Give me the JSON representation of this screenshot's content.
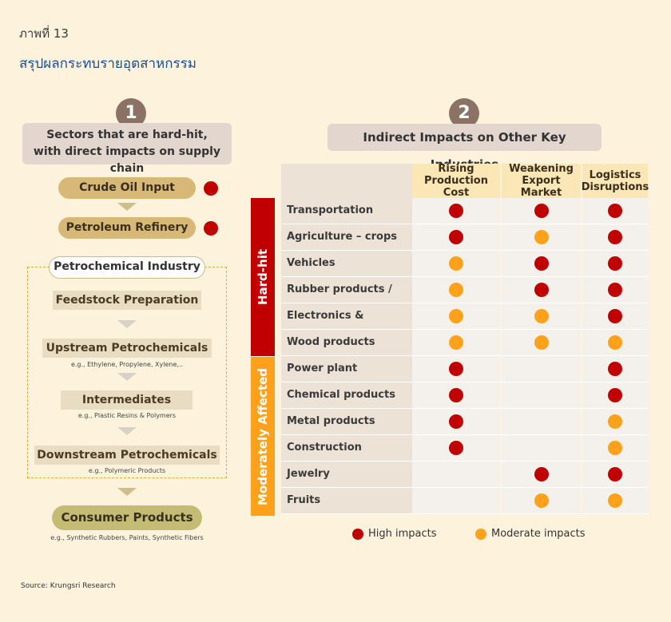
{
  "figure_label": "ภาพที่ 13",
  "figure_title": "สรุปผลกระทบรายอุตสาหกรรม",
  "left_panel": {
    "number": "1",
    "heading_line1": "Sectors that are hard-hit,",
    "heading_line2": "with direct impacts on supply chain",
    "crude_oil": "Crude Oil Input",
    "refinery": "Petroleum Refinery",
    "petrochemical_industry": "Petrochemical Industry",
    "feedstock": "Feedstock Preparation",
    "upstream": "Upstream Petrochemicals",
    "upstream_eg": "e.g., Ethylene, Propylene, Xylene,..",
    "intermediates": "Intermediates",
    "intermediates_eg": "e.g., Plastic Resins & Polymers",
    "downstream": "Downstream Petrochemicals",
    "downstream_eg": "e.g., Polymeric Products",
    "consumer": "Consumer Products",
    "consumer_eg": "e.g., Synthetic Rubbers, Paints, Synthetic Fibers"
  },
  "right_panel": {
    "number": "2",
    "heading": "Indirect Impacts on Other Key Industries",
    "columns": [
      {
        "line1": "Rising",
        "line2": "Production Cost"
      },
      {
        "line1": "Weakening",
        "line2": "Export Market"
      },
      {
        "line1": "Logistics",
        "line2": "Disruptions"
      }
    ],
    "group_hard_hit": "Hard-hit",
    "group_moderate": "Moderately Affected",
    "rows": [
      {
        "label": "Transportation",
        "impacts": [
          "high",
          "high",
          "high"
        ]
      },
      {
        "label": "Agriculture – crops",
        "impacts": [
          "high",
          "moderate",
          "high"
        ]
      },
      {
        "label": "Vehicles",
        "impacts": [
          "moderate",
          "high",
          "high"
        ]
      },
      {
        "label": "Rubber products / Tires",
        "impacts": [
          "moderate",
          "high",
          "high"
        ]
      },
      {
        "label": "Electronics & Appliances",
        "impacts": [
          "moderate",
          "moderate",
          "high"
        ]
      },
      {
        "label": "Wood products",
        "impacts": [
          "moderate",
          "moderate",
          "moderate"
        ]
      },
      {
        "label": "Power plant",
        "impacts": [
          "high",
          "none",
          "high"
        ]
      },
      {
        "label": "Chemical products",
        "impacts": [
          "high",
          "none",
          "high"
        ]
      },
      {
        "label": "Metal products",
        "impacts": [
          "high",
          "none",
          "moderate"
        ]
      },
      {
        "label": "Construction materials",
        "impacts": [
          "high",
          "none",
          "moderate"
        ]
      },
      {
        "label": "Jewelry",
        "impacts": [
          "none",
          "high",
          "high"
        ]
      },
      {
        "label": "Fruits",
        "impacts": [
          "none",
          "moderate",
          "moderate"
        ]
      }
    ],
    "legend_high": "High impacts",
    "legend_moderate": "Moderate impacts"
  },
  "colors": {
    "high": "#c00000",
    "moderate": "#ffa11a",
    "hard_hit_bar": "#c00000",
    "moderate_bar": "#ffa11a"
  },
  "source": "Source: Krungsri Research"
}
